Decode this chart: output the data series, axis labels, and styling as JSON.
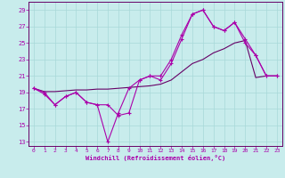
{
  "background_color": "#c8ecec",
  "grid_color": "#a8d8d8",
  "line_color": "#aa00aa",
  "line_color2": "#660066",
  "xlabel": "Windchill (Refroidissement éolien,°C)",
  "xlim": [
    -0.5,
    23.5
  ],
  "ylim": [
    12.5,
    30.0
  ],
  "yticks": [
    13,
    15,
    17,
    19,
    21,
    23,
    25,
    27,
    29
  ],
  "xticks": [
    0,
    1,
    2,
    3,
    4,
    5,
    6,
    7,
    8,
    9,
    10,
    11,
    12,
    13,
    14,
    15,
    16,
    17,
    18,
    19,
    20,
    21,
    22,
    23
  ],
  "curve1_x": [
    0,
    1,
    2,
    3,
    4,
    5,
    6,
    7,
    8,
    9,
    10,
    11,
    12,
    13,
    14,
    15,
    16,
    17,
    18,
    19,
    20,
    21,
    22,
    23
  ],
  "curve1_y": [
    19.5,
    19.0,
    17.5,
    18.5,
    19.0,
    17.8,
    17.5,
    13.0,
    16.5,
    19.5,
    20.5,
    21.0,
    21.0,
    23.0,
    26.0,
    28.5,
    29.0,
    27.0,
    26.5,
    27.5,
    25.0,
    23.5,
    21.0,
    21.0
  ],
  "curve2_x": [
    0,
    1,
    2,
    3,
    4,
    5,
    6,
    7,
    8,
    9,
    10,
    11,
    12,
    13,
    14,
    15,
    16,
    17,
    18,
    19,
    20,
    21,
    22,
    23
  ],
  "curve2_y": [
    19.5,
    18.8,
    17.5,
    18.5,
    19.0,
    17.8,
    17.5,
    17.5,
    16.2,
    16.5,
    20.5,
    21.0,
    20.5,
    22.5,
    25.5,
    28.5,
    29.0,
    27.0,
    26.5,
    27.5,
    25.5,
    23.5,
    21.0,
    21.0
  ],
  "curve3_x": [
    0,
    1,
    2,
    3,
    4,
    5,
    6,
    7,
    8,
    9,
    10,
    11,
    12,
    13,
    14,
    15,
    16,
    17,
    18,
    19,
    20,
    21,
    22,
    23
  ],
  "curve3_y": [
    19.5,
    19.1,
    19.1,
    19.2,
    19.3,
    19.3,
    19.4,
    19.4,
    19.5,
    19.6,
    19.7,
    19.8,
    20.0,
    20.5,
    21.5,
    22.5,
    23.0,
    23.8,
    24.3,
    25.0,
    25.3,
    20.8,
    21.0,
    21.0
  ]
}
